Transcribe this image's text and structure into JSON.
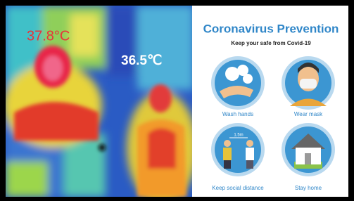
{
  "thermal_image": {
    "readings": [
      "37.8°C",
      "36.5℃"
    ]
  },
  "poster": {
    "title": "Coronavirus Prevention",
    "subtitle": "Keep your safe from Covid-19",
    "items": [
      {
        "label": "Wash hands"
      },
      {
        "label": "Wear mask"
      },
      {
        "label": "Keep social distance"
      },
      {
        "label": "Stay home"
      }
    ],
    "distance": "1.5m"
  }
}
